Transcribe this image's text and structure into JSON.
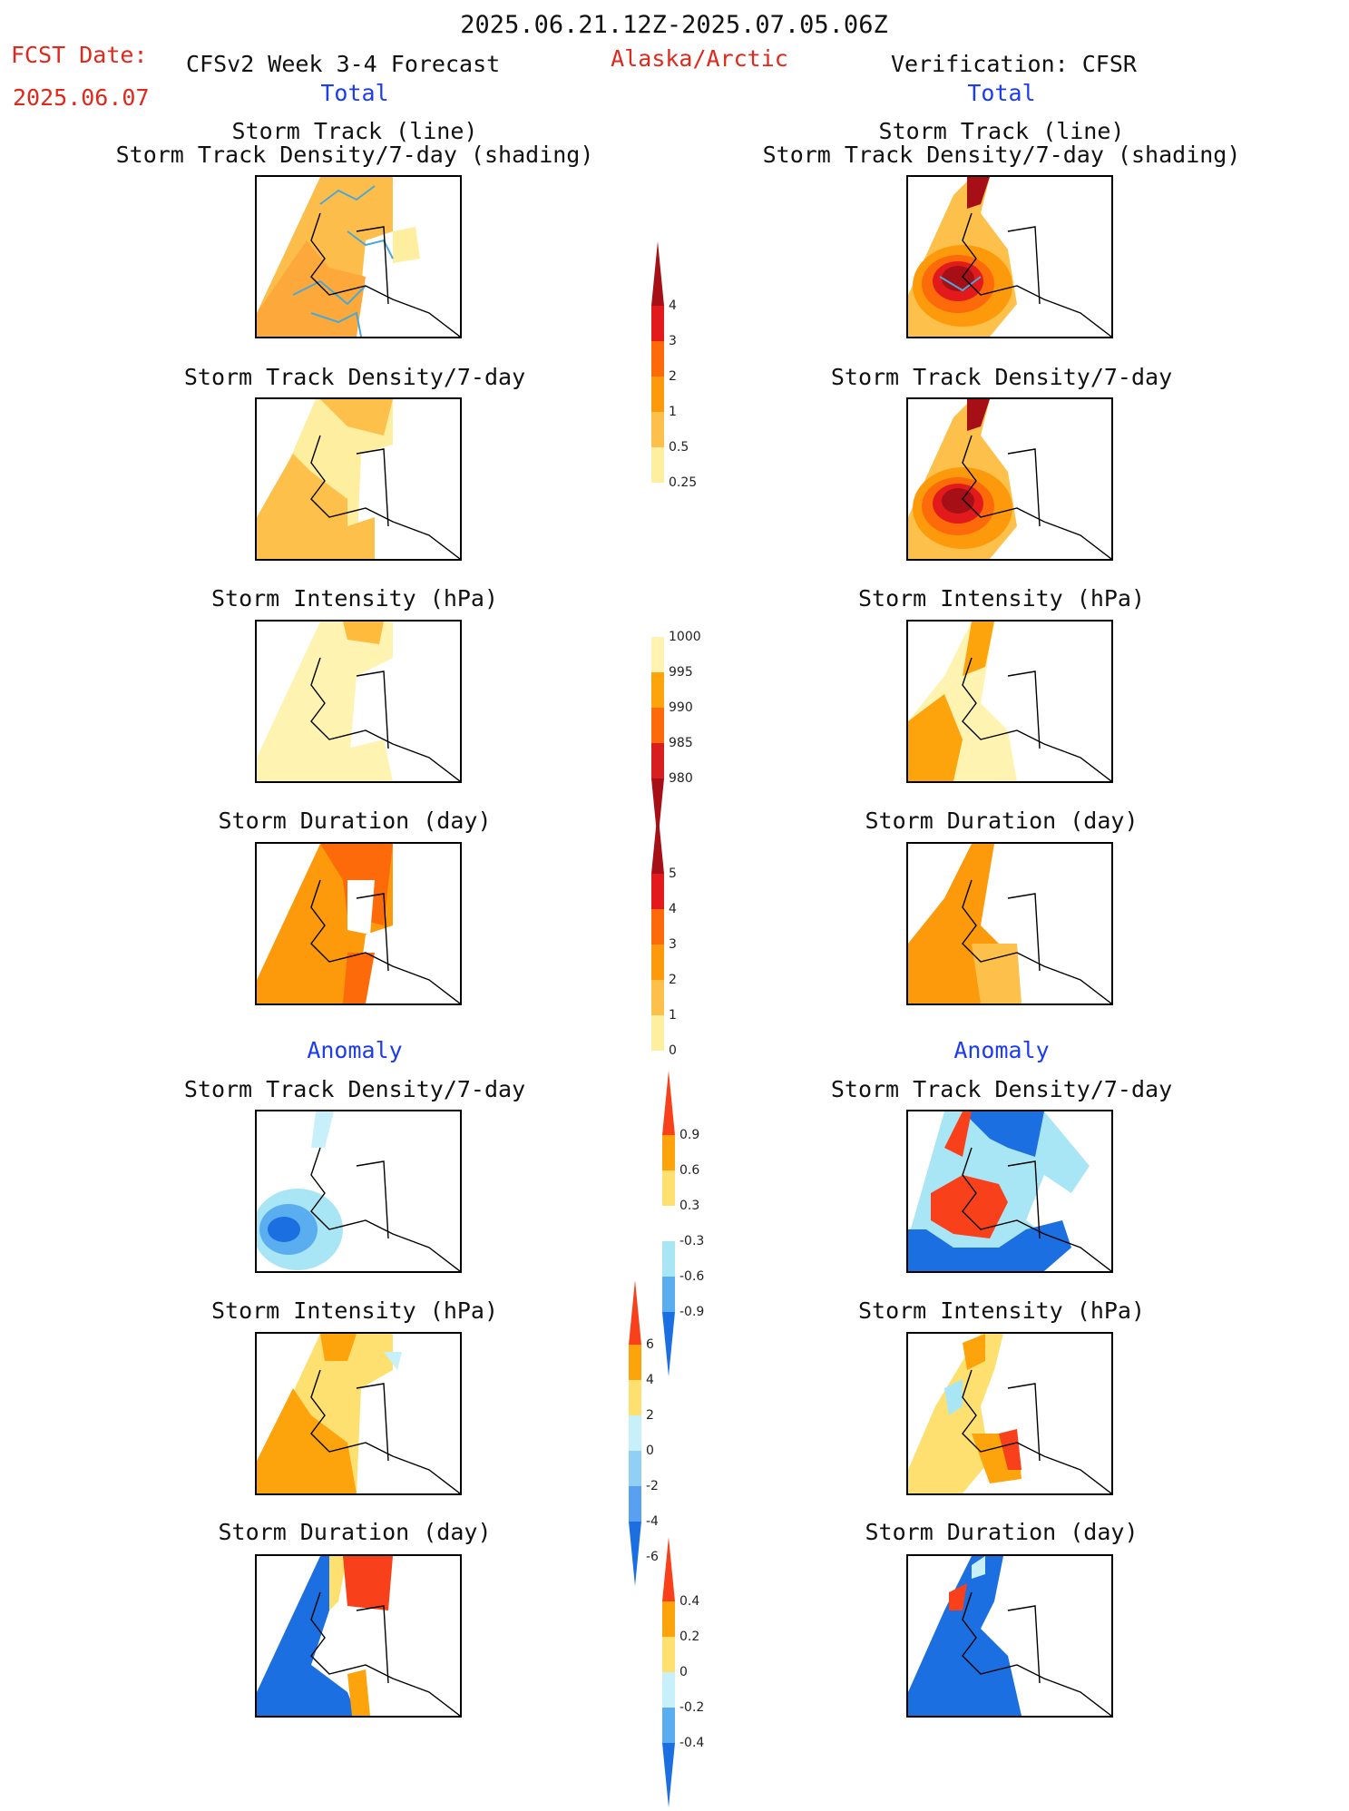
{
  "header": {
    "date_range": "2025.06.21.12Z-2025.07.05.06Z",
    "fcst_label": "FCST Date:",
    "fcst_date": "2025.06.07",
    "forecast_title": "CFSv2 Week 3-4 Forecast",
    "region": "Alaska/Arctic",
    "verification": "Verification: CFSR"
  },
  "sections": {
    "total_left": "Total",
    "total_right": "Total",
    "anomaly_left": "Anomaly",
    "anomaly_right": "Anomaly"
  },
  "panel_titles": {
    "track_line": "Storm Track (line)",
    "track_density_shading": "Storm Track Density/7-day (shading)",
    "track_density": "Storm Track Density/7-day",
    "intensity": "Storm Intensity (hPa)",
    "duration": "Storm Duration (day)"
  },
  "colorbars": {
    "density": {
      "labels": [
        "4",
        "3",
        "2",
        "1",
        "0.5",
        "0.25"
      ],
      "colors": [
        "#a50f15",
        "#e31a1c",
        "#fd6a0a",
        "#fd9a0c",
        "#fdc04a",
        "#fdeea0"
      ]
    },
    "intensity": {
      "labels": [
        "1000",
        "995",
        "990",
        "985",
        "980"
      ],
      "colors": [
        "#fef3b0",
        "#fda30c",
        "#fd6a0a",
        "#d81f1f",
        "#a50f15"
      ]
    },
    "duration": {
      "labels": [
        "5",
        "4",
        "3",
        "2",
        "1",
        "0"
      ],
      "colors": [
        "#a50f15",
        "#e31a1c",
        "#fd6a0a",
        "#fd9a0c",
        "#fdc04a",
        "#fdeea0"
      ]
    },
    "anom_density": {
      "labels": [
        "0.9",
        "0.6",
        "0.3",
        "-0.3",
        "-0.6",
        "-0.9"
      ],
      "colors": [
        "#f8401a",
        "#fda30c",
        "#fde070",
        "#ffffff",
        "#a8e6f6",
        "#5aaef0",
        "#1b6fe0"
      ]
    },
    "anom_intensity": {
      "labels": [
        "6",
        "4",
        "2",
        "0",
        "-2",
        "-4",
        "-6"
      ],
      "colors": [
        "#f8401a",
        "#fda30c",
        "#fde070",
        "#c8f0fa",
        "#8fd0f4",
        "#5aa0f0",
        "#1b6fe0"
      ]
    },
    "anom_duration": {
      "labels": [
        "0.4",
        "0.2",
        "0",
        "-0.2",
        "-0.4"
      ],
      "colors": [
        "#f8401a",
        "#fda30c",
        "#fde070",
        "#c8f0fa",
        "#5aaef0",
        "#1b6fe0"
      ]
    }
  },
  "colors": {
    "title_red": "#e0281c",
    "title_blue": "#1c3cf2"
  }
}
